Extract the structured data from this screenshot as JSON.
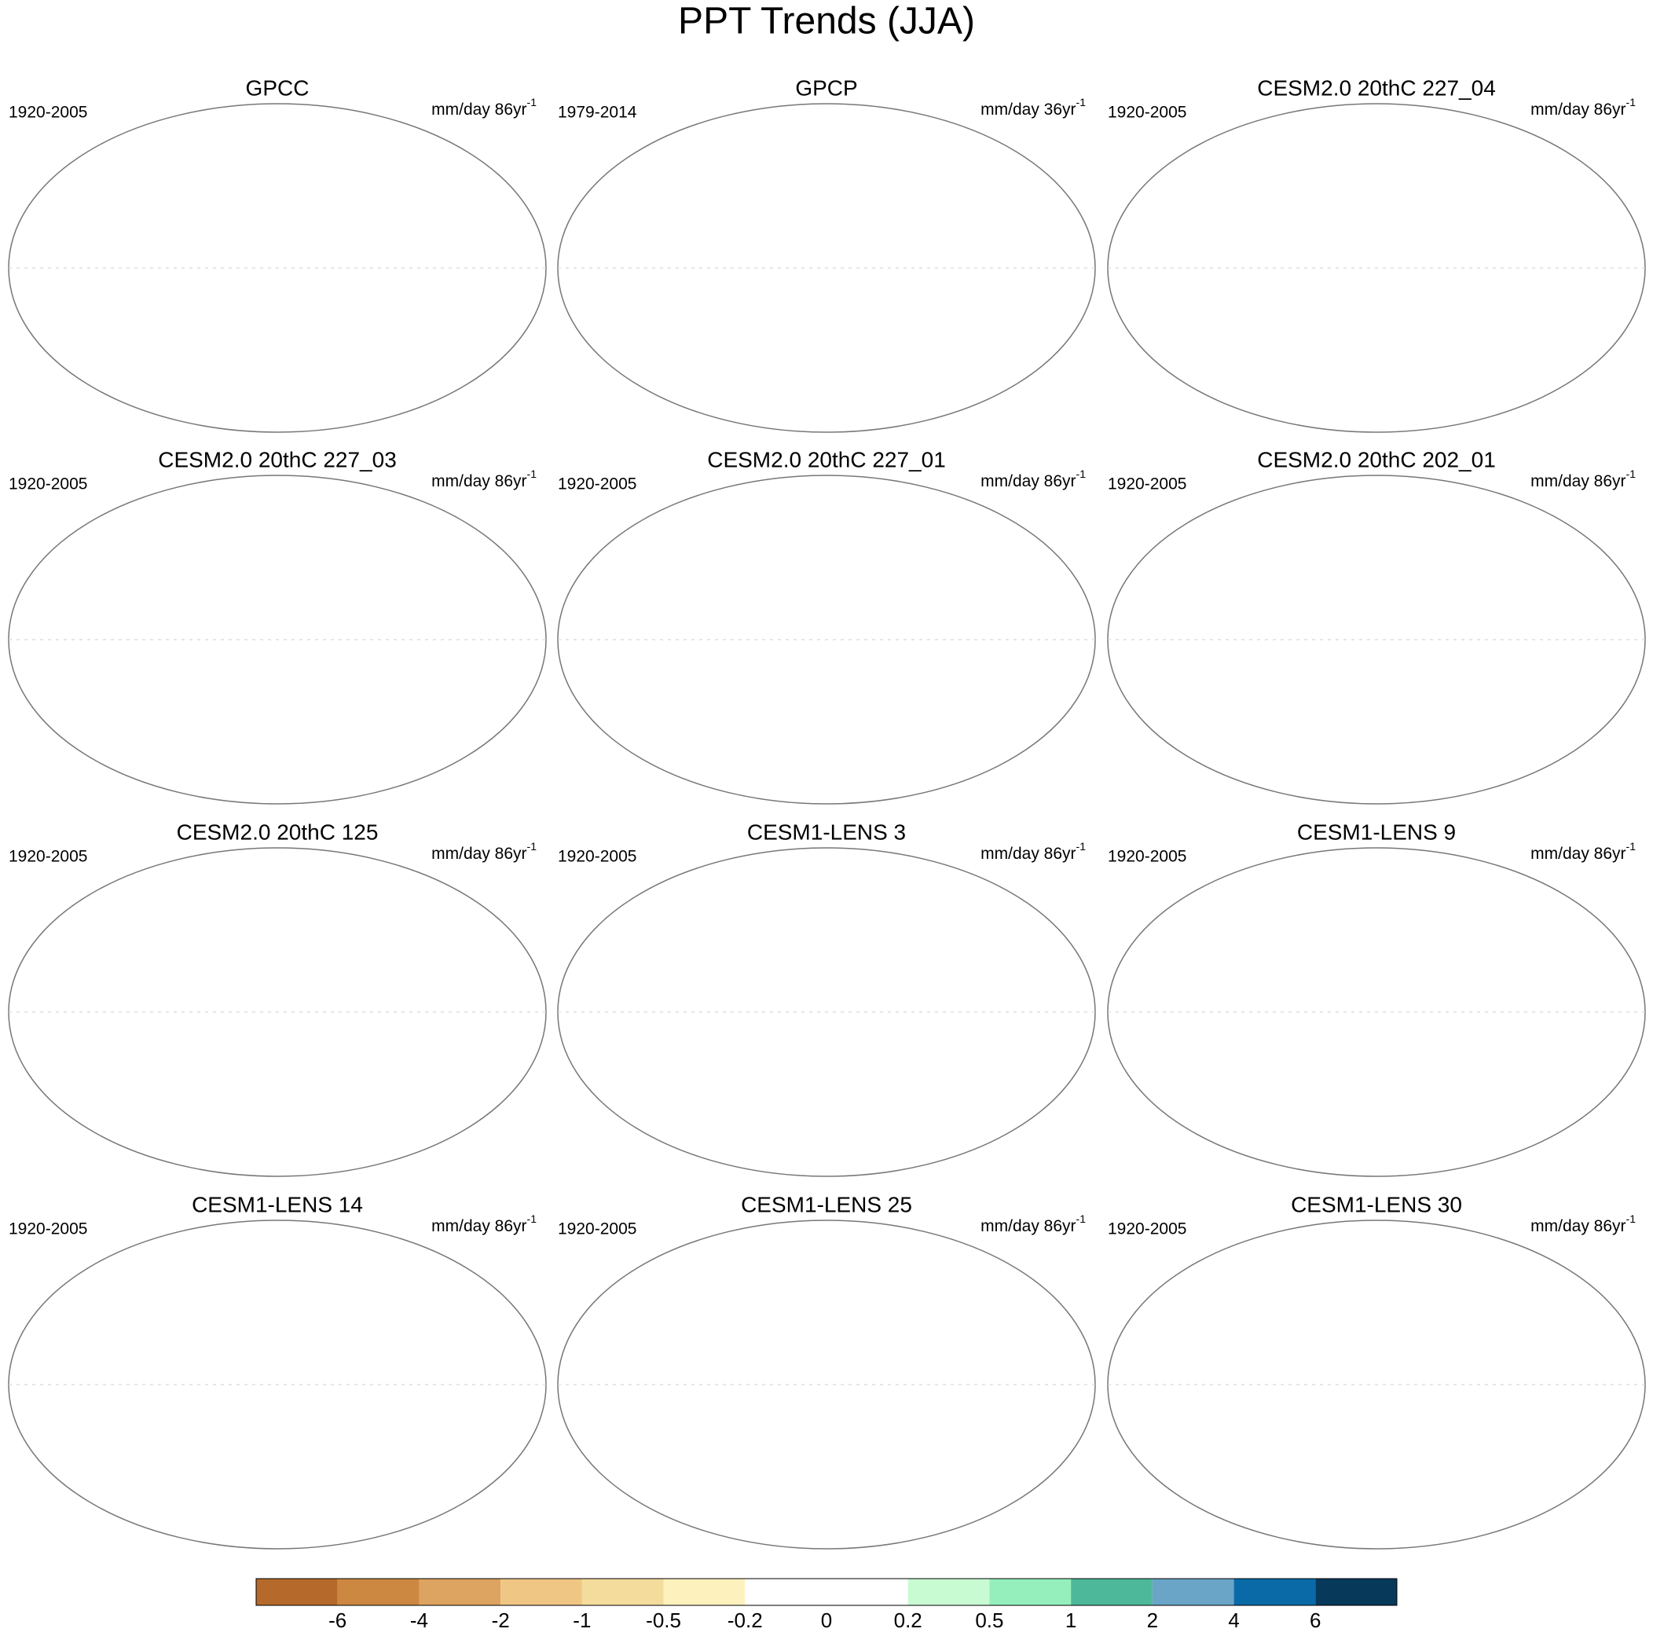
{
  "figure": {
    "title": "PPT Trends (JJA)",
    "panels": [
      {
        "title": "GPCC",
        "period": "1920-2005",
        "units": {
          "text": "mm/day 86yr",
          "exponent": "-1"
        }
      },
      {
        "title": "GPCP",
        "period": "1979-2014",
        "units": {
          "text": "mm/day 36yr",
          "exponent": "-1"
        }
      },
      {
        "title": "CESM2.0 20thC 227_04",
        "period": "1920-2005",
        "units": {
          "text": "mm/day 86yr",
          "exponent": "-1"
        }
      },
      {
        "title": "CESM2.0 20thC 227_03",
        "period": "1920-2005",
        "units": {
          "text": "mm/day 86yr",
          "exponent": "-1"
        }
      },
      {
        "title": "CESM2.0 20thC 227_01",
        "period": "1920-2005",
        "units": {
          "text": "mm/day 86yr",
          "exponent": "-1"
        }
      },
      {
        "title": "CESM2.0 20thC 202_01",
        "period": "1920-2005",
        "units": {
          "text": "mm/day 86yr",
          "exponent": "-1"
        }
      },
      {
        "title": "CESM2.0 20thC 125",
        "period": "1920-2005",
        "units": {
          "text": "mm/day 86yr",
          "exponent": "-1"
        }
      },
      {
        "title": "CESM1-LENS 3",
        "period": "1920-2005",
        "units": {
          "text": "mm/day 86yr",
          "exponent": "-1"
        }
      },
      {
        "title": "CESM1-LENS 9",
        "period": "1920-2005",
        "units": {
          "text": "mm/day 86yr",
          "exponent": "-1"
        }
      },
      {
        "title": "CESM1-LENS 14",
        "period": "1920-2005",
        "units": {
          "text": "mm/day 86yr",
          "exponent": "-1"
        }
      },
      {
        "title": "CESM1-LENS 25",
        "period": "1920-2005",
        "units": {
          "text": "mm/day 86yr",
          "exponent": "-1"
        }
      },
      {
        "title": "CESM1-LENS 30",
        "period": "1920-2005",
        "units": {
          "text": "mm/day 86yr",
          "exponent": "-1"
        }
      }
    ],
    "colorbar": {
      "colors": [
        "#b5692a",
        "#cc8741",
        "#dca460",
        "#f0c684",
        "#f4dc9c",
        "#fdf2bd",
        "#ffffff",
        "#ffffff",
        "#c8fbd2",
        "#94efbc",
        "#4db99a",
        "#6aa5c8",
        "#0a6aa8",
        "#06395a"
      ],
      "ticks": [
        -6,
        -4,
        -2,
        -1,
        -0.5,
        -0.2,
        0,
        0.2,
        0.5,
        1,
        2,
        4,
        6
      ]
    }
  }
}
